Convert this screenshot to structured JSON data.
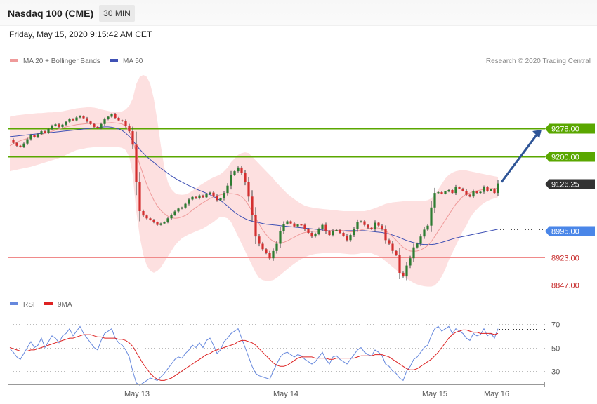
{
  "header": {
    "title": "Nasdaq 100 (CME)",
    "interval": "30 MIN",
    "datetime": "Friday, May 15, 2020 9:15:42 AM CET"
  },
  "legend": {
    "ma20_bb": "MA 20 + Bollinger Bands",
    "ma50": "MA 50",
    "credit": "Research © 2020 Trading Central",
    "rsi": "RSI",
    "rsi_ma": "9MA"
  },
  "colors": {
    "up_candle": "#2e7d32",
    "down_candle": "#d32f2f",
    "band_fill": "#fde0e0",
    "ma20": "#ef9a9a",
    "ma50": "#3f51b5",
    "resistance": "#5aa700",
    "pivot": "#4a86e8",
    "support": "#f08a8a",
    "last_price_tag": "#333333",
    "arrow": "#2f5597",
    "rsi_line": "#6688dd",
    "rsi_ma_line": "#dd2222"
  },
  "chart_data": [
    {
      "type": "candlestick",
      "title": "Nasdaq 100 (CME)",
      "x_labels": [
        "May 13",
        "May 14",
        "May 15",
        "May 16"
      ],
      "ylim": [
        8820,
        9400
      ],
      "last_price": "9126.25",
      "levels": [
        {
          "value": 9278.0,
          "label": "9278.00",
          "kind": "resistance"
        },
        {
          "value": 9200.0,
          "label": "9200.00",
          "kind": "resistance"
        },
        {
          "value": 8995.0,
          "label": "8995.00",
          "kind": "pivot"
        },
        {
          "value": 8923.0,
          "label": "8923.00",
          "kind": "support"
        },
        {
          "value": 8847.0,
          "label": "8847.00",
          "kind": "support"
        }
      ],
      "forecast_target": 9278.0,
      "close": [
        9247,
        9238,
        9230,
        9227,
        9236,
        9248,
        9259,
        9254,
        9262,
        9270,
        9266,
        9276,
        9285,
        9289,
        9282,
        9288,
        9296,
        9304,
        9300,
        9308,
        9312,
        9306,
        9297,
        9290,
        9282,
        9279,
        9290,
        9303,
        9310,
        9317,
        9307,
        9300,
        9298,
        9285,
        9270,
        9233,
        9130,
        9050,
        9038,
        9030,
        9026,
        9019,
        9012,
        9016,
        9020,
        9030,
        9040,
        9049,
        9057,
        9060,
        9070,
        9082,
        9089,
        9085,
        9093,
        9088,
        9097,
        9101,
        9092,
        9080,
        9085,
        9100,
        9120,
        9150,
        9160,
        9170,
        9155,
        9130,
        9090,
        9040,
        8980,
        8960,
        8945,
        8935,
        8920,
        8940,
        8960,
        8995,
        9015,
        9022,
        9016,
        9008,
        9013,
        9012,
        9000,
        8990,
        8980,
        8988,
        9000,
        9012,
        8994,
        8984,
        8996,
        8998,
        8990,
        8982,
        8970,
        8984,
        9000,
        9020,
        9022,
        9012,
        9004,
        9000,
        9018,
        9010,
        9000,
        8970,
        8960,
        8940,
        8930,
        8880,
        8870,
        8900,
        8920,
        8950,
        8960,
        8980,
        8999,
        9010,
        9060,
        9100,
        9102,
        9098,
        9104,
        9108,
        9100,
        9116,
        9112,
        9106,
        9095,
        9090,
        9104,
        9100,
        9103,
        9116,
        9106,
        9110,
        9100,
        9126
      ],
      "ma20": [
        9230,
        9235,
        9240,
        9244,
        9247,
        9250,
        9253,
        9255,
        9258,
        9261,
        9264,
        9267,
        9270,
        9273,
        9276,
        9279,
        9282,
        9284,
        9286,
        9288,
        9289,
        9290,
        9291,
        9292,
        9292,
        9292,
        9292,
        9293,
        9293,
        9294,
        9293,
        9292,
        9290,
        9284,
        9270,
        9245,
        9210,
        9178,
        9150,
        9123,
        9100,
        9080,
        9064,
        9052,
        9043,
        9036,
        9032,
        9030,
        9031,
        9034,
        9038,
        9045,
        9053,
        9060,
        9067,
        9073,
        9079,
        9085,
        9089,
        9092,
        9095,
        9097,
        9098,
        9098,
        9097,
        9095,
        9090,
        9080,
        9066,
        9049,
        9031,
        9014,
        8998,
        8985,
        8974,
        8967,
        8963,
        8962,
        8964,
        8968,
        8973,
        8978,
        8983,
        8988,
        8991,
        8993,
        8994,
        8994,
        8994,
        8995,
        8996,
        8996,
        8996,
        8997,
        8997,
        8996,
        8994,
        8993,
        8993,
        8995,
        8998,
        9000,
        9002,
        9003,
        9004,
        9003,
        9001,
        8996,
        8988,
        8979,
        8970,
        8959,
        8950,
        8944,
        8940,
        8939,
        8940,
        8943,
        8948,
        8955,
        8966,
        8980,
        8995,
        9010,
        9025,
        9040,
        9055,
        9069,
        9080,
        9090,
        9097,
        9100,
        9104,
        9106,
        9108,
        9110,
        9111,
        9112,
        9112,
        9113
      ],
      "ma50": [
        9255,
        9256,
        9257,
        9258,
        9259,
        9260,
        9261,
        9262,
        9263,
        9264,
        9265,
        9266,
        9267,
        9268,
        9269,
        9270,
        9271,
        9272,
        9273,
        9274,
        9275,
        9276,
        9277,
        9278,
        9279,
        9280,
        9281,
        9282,
        9282,
        9281,
        9279,
        9276,
        9272,
        9265,
        9256,
        9245,
        9232,
        9220,
        9210,
        9200,
        9192,
        9184,
        9176,
        9168,
        9161,
        9154,
        9147,
        9141,
        9135,
        9130,
        9125,
        9120,
        9116,
        9111,
        9107,
        9103,
        9099,
        9095,
        9090,
        9085,
        9079,
        9072,
        9064,
        9055,
        9047,
        9040,
        9034,
        9029,
        9025,
        9022,
        9020,
        9018,
        9016,
        9014,
        9013,
        9012,
        9011,
        9010,
        9009,
        9008,
        9007,
        9006,
        9005,
        9004,
        9003,
        9002,
        9001,
        9000,
        8999,
        8998,
        8997,
        8996,
        8996,
        8996,
        8996,
        8996,
        8996,
        8996,
        8996,
        8996,
        8996,
        8996,
        8995,
        8994,
        8993,
        8992,
        8991,
        8989,
        8987,
        8984,
        8981,
        8977,
        8973,
        8969,
        8966,
        8963,
        8961,
        8959,
        8958,
        8958,
        8958,
        8959,
        8961,
        8964,
        8967,
        8970,
        8973,
        8976,
        8978,
        8980,
        8982,
        8984,
        8986,
        8988,
        8990,
        8992,
        8994,
        8996,
        8998,
        9000
      ],
      "bb_upper": [
        9310,
        9312,
        9314,
        9315,
        9316,
        9317,
        9318,
        9319,
        9320,
        9320,
        9321,
        9322,
        9322,
        9323,
        9324,
        9325,
        9327,
        9329,
        9331,
        9333,
        9334,
        9335,
        9336,
        9336,
        9335,
        9333,
        9330,
        9328,
        9326,
        9324,
        9323,
        9323,
        9325,
        9330,
        9340,
        9360,
        9400,
        9420,
        9425,
        9420,
        9400,
        9360,
        9300,
        9230,
        9170,
        9130,
        9110,
        9100,
        9096,
        9095,
        9096,
        9100,
        9106,
        9113,
        9120,
        9126,
        9132,
        9138,
        9143,
        9147,
        9152,
        9160,
        9170,
        9185,
        9195,
        9205,
        9210,
        9212,
        9210,
        9200,
        9190,
        9180,
        9170,
        9160,
        9150,
        9140,
        9128,
        9118,
        9108,
        9098,
        9090,
        9083,
        9076,
        9070,
        9065,
        9062,
        9060,
        9058,
        9057,
        9056,
        9055,
        9054,
        9053,
        9052,
        9051,
        9050,
        9050,
        9050,
        9050,
        9050,
        9050,
        9050,
        9052,
        9055,
        9058,
        9062,
        9066,
        9070,
        9072,
        9074,
        9075,
        9076,
        9077,
        9078,
        9078,
        9078,
        9078,
        9078,
        9078,
        9080,
        9085,
        9095,
        9110,
        9125,
        9140,
        9150,
        9156,
        9160,
        9162,
        9162,
        9162,
        9160,
        9158,
        9156,
        9154,
        9152,
        9150,
        9148,
        9146,
        9144
      ],
      "bb_lower": [
        9160,
        9162,
        9164,
        9166,
        9168,
        9170,
        9172,
        9175,
        9178,
        9181,
        9184,
        9187,
        9190,
        9193,
        9196,
        9200,
        9205,
        9210,
        9214,
        9218,
        9220,
        9222,
        9224,
        9225,
        9226,
        9226,
        9226,
        9226,
        9226,
        9226,
        9226,
        9226,
        9224,
        9218,
        9200,
        9150,
        9050,
        8980,
        8930,
        8900,
        8885,
        8880,
        8885,
        8895,
        8910,
        8925,
        8940,
        8955,
        8966,
        8975,
        8981,
        8986,
        8990,
        8994,
        8998,
        9002,
        9008,
        9014,
        9020,
        9028,
        9035,
        9033,
        9030,
        9020,
        9000,
        8980,
        8960,
        8940,
        8920,
        8900,
        8880,
        8866,
        8860,
        8858,
        8858,
        8860,
        8866,
        8874,
        8882,
        8890,
        8898,
        8905,
        8912,
        8918,
        8923,
        8927,
        8930,
        8932,
        8933,
        8934,
        8935,
        8935,
        8935,
        8935,
        8934,
        8933,
        8932,
        8931,
        8931,
        8932,
        8934,
        8936,
        8936,
        8934,
        8930,
        8926,
        8920,
        8912,
        8904,
        8896,
        8888,
        8880,
        8872,
        8864,
        8858,
        8852,
        8848,
        8845,
        8843,
        8842,
        8842,
        8845,
        8855,
        8870,
        8890,
        8915,
        8935,
        8955,
        8975,
        8995,
        9010,
        9030,
        9045,
        9055,
        9065,
        9072,
        9078,
        9082,
        9085,
        9088
      ]
    },
    {
      "type": "line",
      "title": "RSI",
      "ylim": [
        20,
        75
      ],
      "ticks": [
        30,
        50,
        70
      ],
      "series": [
        {
          "name": "RSI",
          "values": [
            49,
            46,
            42,
            40,
            45,
            50,
            55,
            50,
            52,
            58,
            50,
            55,
            60,
            58,
            54,
            60,
            62,
            66,
            60,
            64,
            68,
            62,
            58,
            54,
            50,
            48,
            56,
            62,
            64,
            66,
            58,
            54,
            52,
            48,
            42,
            30,
            20,
            18,
            20,
            22,
            24,
            23,
            22,
            25,
            28,
            32,
            36,
            40,
            42,
            41,
            45,
            48,
            52,
            50,
            54,
            50,
            56,
            58,
            52,
            45,
            48,
            55,
            58,
            62,
            64,
            66,
            58,
            50,
            42,
            34,
            28,
            26,
            25,
            24,
            23,
            30,
            36,
            42,
            45,
            46,
            44,
            42,
            44,
            43,
            40,
            38,
            36,
            38,
            42,
            46,
            40,
            36,
            42,
            43,
            40,
            38,
            36,
            40,
            44,
            48,
            50,
            46,
            44,
            43,
            48,
            46,
            43,
            36,
            34,
            30,
            28,
            24,
            22,
            30,
            34,
            40,
            42,
            46,
            50,
            52,
            60,
            66,
            68,
            64,
            66,
            68,
            62,
            66,
            64,
            62,
            58,
            56,
            62,
            60,
            61,
            66,
            60,
            62,
            58,
            66
          ]
        },
        {
          "name": "9MA",
          "values": [
            50,
            49,
            48,
            47,
            47,
            47,
            48,
            48,
            49,
            50,
            51,
            52,
            53,
            54,
            55,
            56,
            57,
            58,
            58,
            59,
            60,
            61,
            61,
            61,
            60,
            59,
            59,
            58,
            58,
            58,
            58,
            57,
            57,
            56,
            54,
            51,
            46,
            41,
            36,
            32,
            28,
            25,
            23,
            22,
            22,
            23,
            24,
            26,
            28,
            30,
            32,
            34,
            36,
            38,
            40,
            42,
            44,
            45,
            47,
            48,
            49,
            50,
            51,
            52,
            53,
            55,
            56,
            56,
            55,
            54,
            52,
            49,
            46,
            43,
            40,
            37,
            35,
            34,
            34,
            35,
            37,
            39,
            41,
            42,
            42,
            42,
            42,
            41,
            41,
            41,
            41,
            40,
            40,
            41,
            41,
            41,
            41,
            41,
            41,
            42,
            43,
            43,
            43,
            43,
            44,
            44,
            44,
            43,
            42,
            40,
            38,
            36,
            34,
            32,
            31,
            31,
            32,
            34,
            36,
            38,
            40,
            43,
            46,
            50,
            54,
            58,
            61,
            63,
            64,
            65,
            65,
            64,
            63,
            63,
            62,
            62,
            62,
            62,
            61,
            62
          ]
        }
      ]
    }
  ]
}
